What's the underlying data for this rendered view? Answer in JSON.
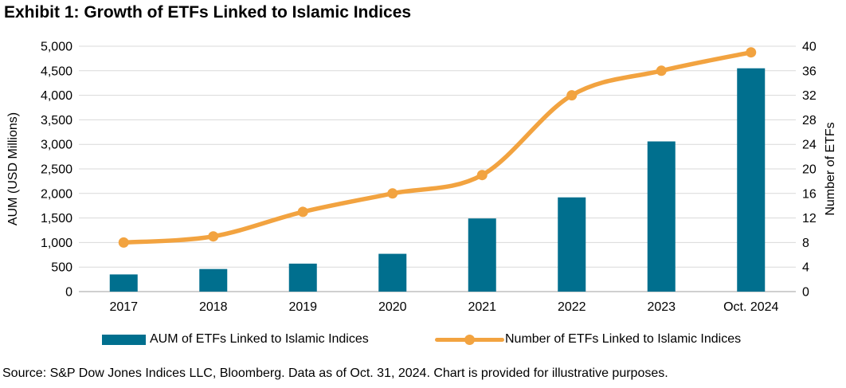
{
  "title": "Exhibit 1: Growth of ETFs Linked to Islamic Indices",
  "source_note": "Source: S&P Dow Jones Indices LLC, Bloomberg. Data as of Oct. 31, 2024. Chart is provided for illustrative purposes.",
  "colors": {
    "bar_teal": "#006F8E",
    "line_orange": "#F2A340",
    "gridline": "#D9D9D9",
    "axis_line": "#BFBFBF",
    "text": "#000000",
    "background": "#FFFFFF"
  },
  "chart_data": {
    "type": "bar",
    "subtype": "combo-bar-line-dual-axis",
    "categories": [
      "2017",
      "2018",
      "2019",
      "2020",
      "2021",
      "2022",
      "2023",
      "Oct. 2024"
    ],
    "series": [
      {
        "name": "AUM of ETFs Linked to Islamic Indices",
        "type": "bar",
        "axis": "left",
        "color": "#006F8E",
        "values": [
          350,
          460,
          570,
          770,
          1490,
          1920,
          3060,
          4550
        ]
      },
      {
        "name": "Number of ETFs Linked to Islamic Indices",
        "type": "line",
        "axis": "right",
        "color": "#F2A340",
        "values": [
          8,
          9,
          13,
          16,
          19,
          32,
          36,
          39
        ]
      }
    ],
    "left_axis": {
      "label": "AUM (USD Millions)",
      "min": 0,
      "max": 5000,
      "step": 500,
      "comma_format": true
    },
    "right_axis": {
      "label": "Number of ETFs",
      "min": 0,
      "max": 40,
      "step": 4,
      "comma_format": false
    },
    "grid": true,
    "legend_position": "bottom",
    "line_smoothed": true
  }
}
